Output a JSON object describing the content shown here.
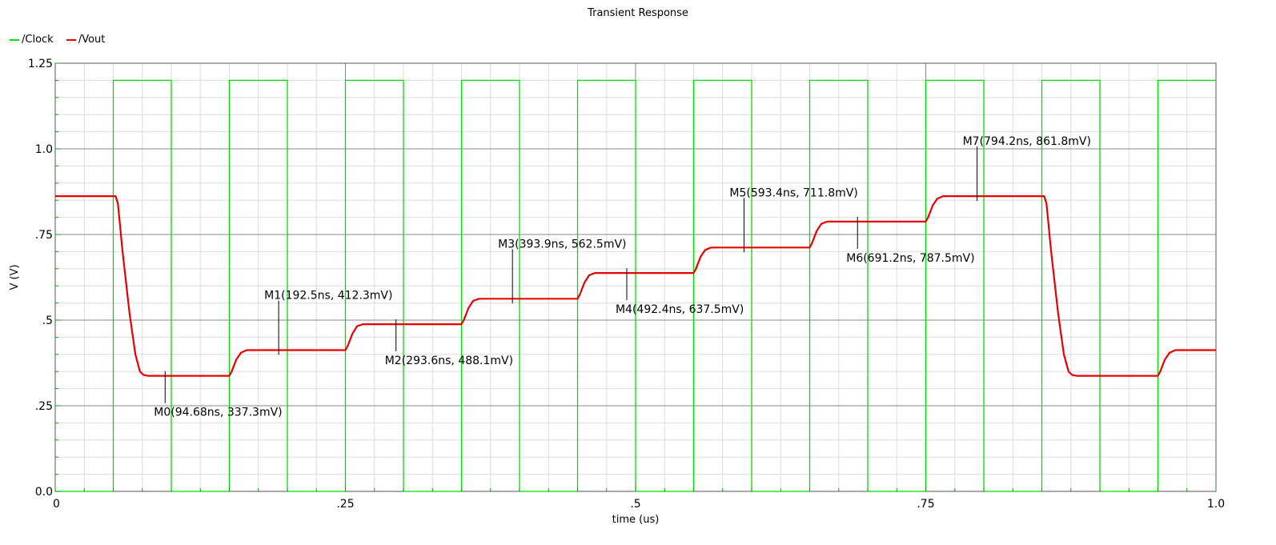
{
  "chart_data": {
    "type": "line",
    "title": "Transient Response",
    "xlabel": "time (us)",
    "ylabel": "V (V)",
    "xlim": [
      0,
      1.0
    ],
    "ylim": [
      0,
      1.25
    ],
    "grid": true,
    "legend_position": "top-left",
    "x_ticks": [
      {
        "value": 0,
        "label": "0"
      },
      {
        "value": 0.25,
        "label": ".25"
      },
      {
        "value": 0.5,
        "label": ".5"
      },
      {
        "value": 0.75,
        "label": ".75"
      },
      {
        "value": 1.0,
        "label": "1.0"
      }
    ],
    "y_ticks": [
      {
        "value": 0,
        "label": "0.0"
      },
      {
        "value": 0.25,
        "label": ".25"
      },
      {
        "value": 0.5,
        "label": ".5"
      },
      {
        "value": 0.75,
        "label": ".75"
      },
      {
        "value": 1.0,
        "label": "1.0"
      },
      {
        "value": 1.25,
        "label": "1.25"
      }
    ],
    "series": [
      {
        "name": "/Clock",
        "color": "#00dd00",
        "x": [
          0,
          0.05,
          0.05,
          0.1,
          0.1,
          0.15,
          0.15,
          0.2,
          0.2,
          0.25,
          0.25,
          0.3,
          0.3,
          0.35,
          0.35,
          0.4,
          0.4,
          0.45,
          0.45,
          0.5,
          0.5,
          0.55,
          0.55,
          0.6,
          0.6,
          0.65,
          0.65,
          0.7,
          0.7,
          0.75,
          0.75,
          0.8,
          0.8,
          0.85,
          0.85,
          0.9,
          0.9,
          0.95,
          0.95,
          1.0
        ],
        "y": [
          0,
          0,
          1.2,
          1.2,
          0,
          0,
          1.2,
          1.2,
          0,
          0,
          1.2,
          1.2,
          0,
          0,
          1.2,
          1.2,
          0,
          0,
          1.2,
          1.2,
          0,
          0,
          1.2,
          1.2,
          0,
          0,
          1.2,
          1.2,
          0,
          0,
          1.2,
          1.2,
          0,
          0,
          1.2,
          1.2,
          0,
          0,
          1.2,
          1.2
        ]
      },
      {
        "name": "/Vout",
        "color": "#e60000",
        "x": [
          0,
          0.052,
          0.054,
          0.058,
          0.064,
          0.069,
          0.073,
          0.076,
          0.08,
          0.15,
          0.152,
          0.156,
          0.16,
          0.165,
          0.2,
          0.25,
          0.252,
          0.256,
          0.26,
          0.265,
          0.3,
          0.35,
          0.352,
          0.356,
          0.36,
          0.365,
          0.4,
          0.45,
          0.452,
          0.456,
          0.46,
          0.465,
          0.5,
          0.55,
          0.552,
          0.556,
          0.56,
          0.565,
          0.6,
          0.65,
          0.652,
          0.656,
          0.66,
          0.665,
          0.7,
          0.75,
          0.752,
          0.756,
          0.76,
          0.765,
          0.8,
          0.852,
          0.854,
          0.858,
          0.864,
          0.869,
          0.873,
          0.876,
          0.88,
          0.95,
          0.952,
          0.956,
          0.96,
          0.965,
          1.0
        ],
        "y": [
          0.8618,
          0.8618,
          0.84,
          0.7,
          0.52,
          0.4,
          0.35,
          0.34,
          0.3373,
          0.3373,
          0.35,
          0.385,
          0.405,
          0.4123,
          0.4123,
          0.4123,
          0.425,
          0.46,
          0.482,
          0.4881,
          0.4881,
          0.4881,
          0.5,
          0.535,
          0.556,
          0.5625,
          0.5625,
          0.5625,
          0.575,
          0.61,
          0.631,
          0.6375,
          0.6375,
          0.6375,
          0.65,
          0.685,
          0.705,
          0.7118,
          0.7118,
          0.7118,
          0.725,
          0.76,
          0.781,
          0.7875,
          0.7875,
          0.7875,
          0.8,
          0.835,
          0.855,
          0.8618,
          0.8618,
          0.8618,
          0.84,
          0.7,
          0.52,
          0.4,
          0.35,
          0.34,
          0.3373,
          0.3373,
          0.35,
          0.385,
          0.405,
          0.4123,
          0.4123
        ]
      }
    ],
    "markers": [
      {
        "label": "M0(94.68ns, 337.3mV)",
        "x": 0.09468,
        "y": 0.3373,
        "side": "below"
      },
      {
        "label": "M1(192.5ns, 412.3mV)",
        "x": 0.1925,
        "y": 0.4123,
        "side": "above"
      },
      {
        "label": "M2(293.6ns, 488.1mV)",
        "x": 0.2936,
        "y": 0.4881,
        "side": "below"
      },
      {
        "label": "M3(393.9ns, 562.5mV)",
        "x": 0.3939,
        "y": 0.5625,
        "side": "above"
      },
      {
        "label": "M4(492.4ns, 637.5mV)",
        "x": 0.4924,
        "y": 0.6375,
        "side": "below"
      },
      {
        "label": "M5(593.4ns, 711.8mV)",
        "x": 0.5934,
        "y": 0.7118,
        "side": "above"
      },
      {
        "label": "M6(691.2ns, 787.5mV)",
        "x": 0.6912,
        "y": 0.7875,
        "side": "below"
      },
      {
        "label": "M7(794.2ns, 861.8mV)",
        "x": 0.7942,
        "y": 0.8618,
        "side": "above"
      }
    ]
  }
}
